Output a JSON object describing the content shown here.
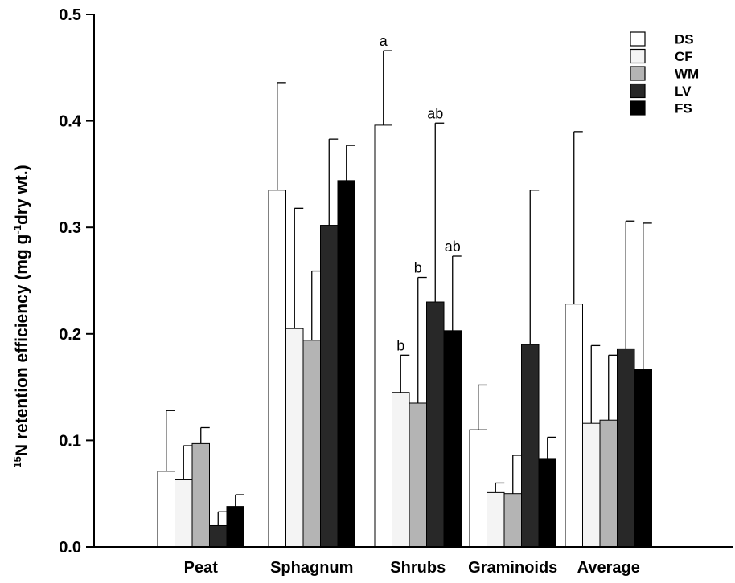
{
  "chart_data": {
    "type": "bar",
    "ylabel_sup": "15",
    "ylabel_main": "N retention efficiency (mg g",
    "ylabel_exp": "-1",
    "ylabel_tail": "dry wt.)",
    "categories": [
      "Peat",
      "Sphagnum",
      "Shrubs",
      "Graminoids",
      "Average"
    ],
    "ylim": [
      0,
      0.5
    ],
    "yticks": [
      "0.0",
      "0.1",
      "0.2",
      "0.3",
      "0.4",
      "0.5"
    ],
    "grid": false,
    "legend_position": "top-right",
    "series": [
      {
        "name": "DS",
        "color": "#ffffff",
        "values": [
          0.071,
          0.335,
          0.396,
          0.11,
          0.228
        ],
        "errors": [
          0.057,
          0.101,
          0.07,
          0.042,
          0.162
        ]
      },
      {
        "name": "CF",
        "color": "#f4f4f4",
        "values": [
          0.063,
          0.205,
          0.145,
          0.051,
          0.116
        ],
        "errors": [
          0.032,
          0.113,
          0.035,
          0.009,
          0.073
        ]
      },
      {
        "name": "WM",
        "color": "#b4b4b4",
        "values": [
          0.097,
          0.194,
          0.135,
          0.05,
          0.119
        ],
        "errors": [
          0.015,
          0.065,
          0.118,
          0.036,
          0.061
        ]
      },
      {
        "name": "LV",
        "color": "#282828",
        "values": [
          0.02,
          0.302,
          0.23,
          0.19,
          0.186
        ],
        "errors": [
          0.013,
          0.081,
          0.168,
          0.145,
          0.12
        ]
      },
      {
        "name": "FS",
        "color": "#000000",
        "values": [
          0.038,
          0.344,
          0.203,
          0.083,
          0.167
        ],
        "errors": [
          0.011,
          0.033,
          0.07,
          0.02,
          0.137
        ]
      }
    ],
    "annotations": [
      {
        "category": "Shrubs",
        "series": "DS",
        "text": "a"
      },
      {
        "category": "Shrubs",
        "series": "CF",
        "text": "b"
      },
      {
        "category": "Shrubs",
        "series": "WM",
        "text": "b"
      },
      {
        "category": "Shrubs",
        "series": "LV",
        "text": "ab"
      },
      {
        "category": "Shrubs",
        "series": "FS",
        "text": "ab"
      }
    ]
  }
}
